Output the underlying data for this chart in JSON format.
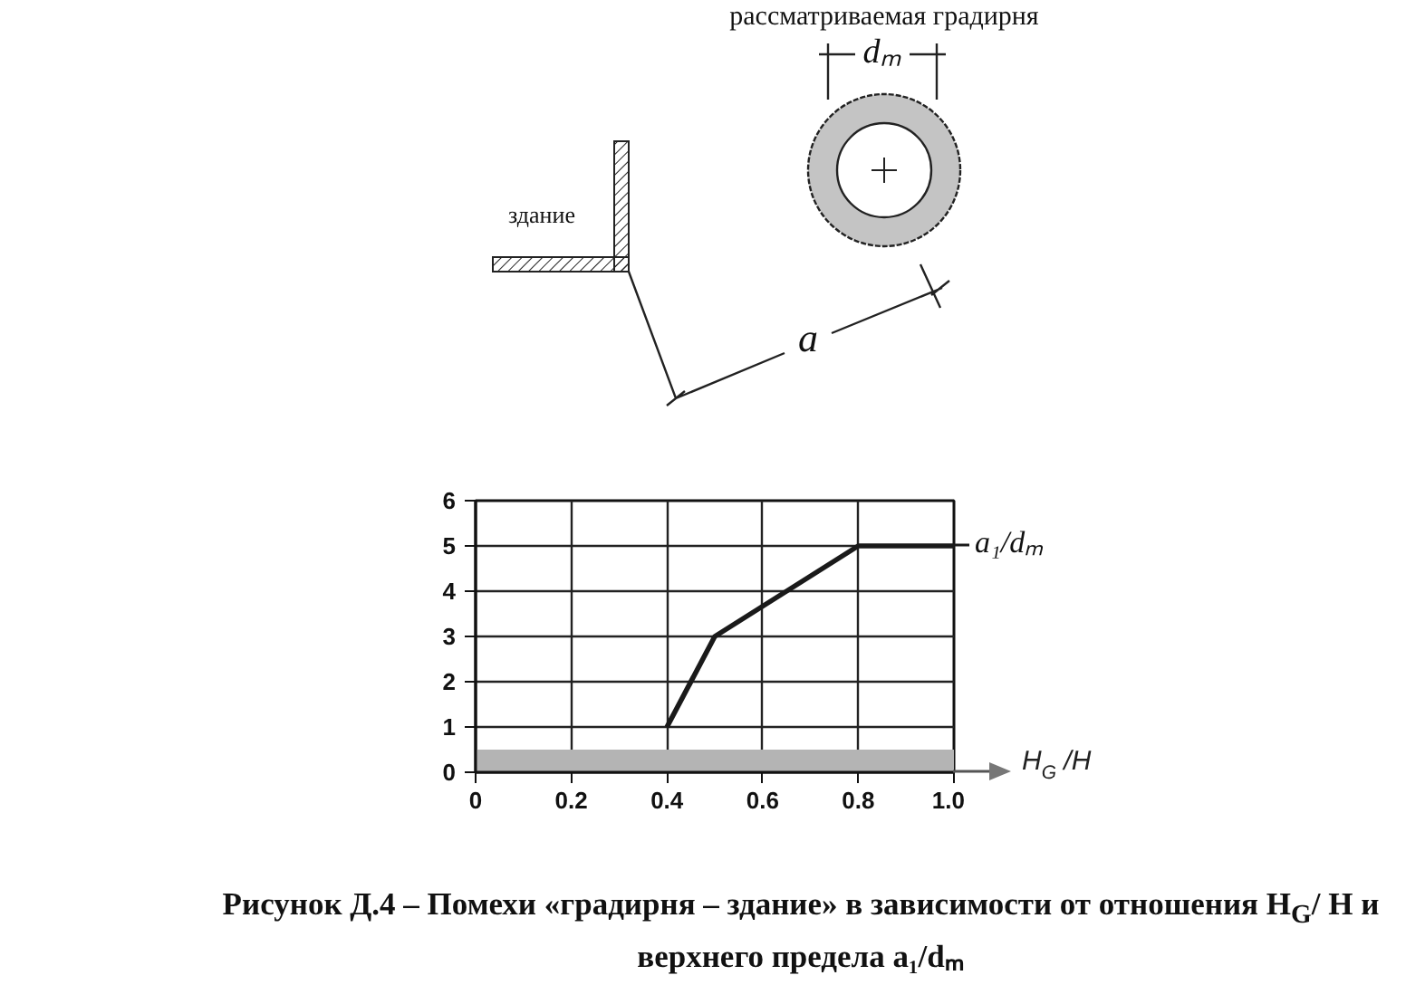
{
  "chart_data": [
    {
      "type": "other",
      "annotations": [
        "рассматриваемая градирня",
        "здание",
        "dₘ",
        "a"
      ]
    },
    {
      "type": "line",
      "xlabel": "H$_{G}$ /H",
      "x": [
        0.4,
        0.5,
        0.65,
        0.8,
        1.0
      ],
      "series": [
        {
          "name": "a₁/dₘ",
          "color": "#1a1a1a",
          "values": [
            1,
            3,
            4,
            5,
            5
          ]
        }
      ],
      "xlim": [
        0,
        1
      ],
      "ylim": [
        0,
        6
      ],
      "xticks": [
        0,
        0.2,
        0.4,
        0.6,
        0.8,
        {
          "value": 1,
          "label": "1.0"
        }
      ],
      "yticks": [
        0,
        1,
        2,
        3,
        4,
        5,
        6
      ],
      "grid": true,
      "line_style": "solid",
      "bands": [
        {
          "axis": "y",
          "from": 0,
          "to": 0.5,
          "color": "#b4b4b4"
        }
      ],
      "annotations": [
        "Рисунок Д.4 – Помехи «градирня – здание» в зависимости от отношения H$_{G}$/ H и верхнего предела a₁/dₘ"
      ]
    }
  ]
}
